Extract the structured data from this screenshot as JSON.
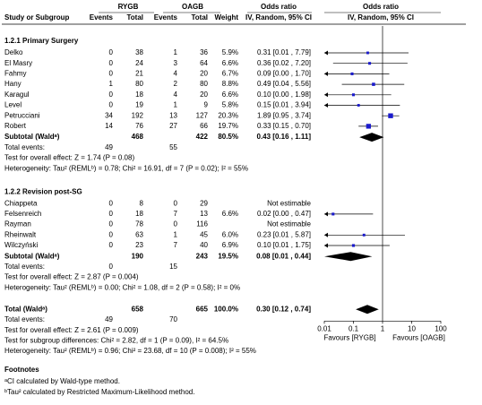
{
  "header": {
    "group1": "RYGB",
    "group2": "OAGB",
    "effect": "Odds ratio",
    "effect2": "Odds ratio",
    "col_study": "Study or Subgroup",
    "col_events1": "Events",
    "col_total1": "Total",
    "col_events2": "Events",
    "col_total2": "Total",
    "col_weight": "Weight",
    "col_effect": "IV, Random, 95% CI",
    "col_effect2": "IV, Random, 95% CI"
  },
  "chart_data": {
    "type": "forest",
    "log": true,
    "xlim": [
      0.01,
      100
    ],
    "xticks": [
      0.01,
      0.1,
      1,
      10,
      100
    ],
    "favours_left": "Favours [RYGB]",
    "favours_right": "Favours [OAGB]",
    "marker_color": "#1a1acc",
    "diamond_color": "#000000",
    "subgroups": [
      {
        "title": "1.2.1 Primary Surgery",
        "studies": [
          {
            "name": "Delko",
            "events1": 0,
            "total1": 38,
            "events2": 1,
            "total2": 36,
            "weight": 5.9,
            "weight_label": "5.9%",
            "or": 0.31,
            "ci": [
              0.01,
              7.79
            ],
            "or_label": "0.31 [0.01 , 7.79]"
          },
          {
            "name": "El Masry",
            "events1": 0,
            "total1": 24,
            "events2": 3,
            "total2": 64,
            "weight": 6.6,
            "weight_label": "6.6%",
            "or": 0.36,
            "ci": [
              0.02,
              7.2
            ],
            "or_label": "0.36 [0.02 , 7.20]"
          },
          {
            "name": "Fahmy",
            "events1": 0,
            "total1": 21,
            "events2": 4,
            "total2": 20,
            "weight": 6.7,
            "weight_label": "6.7%",
            "or": 0.09,
            "ci": [
              0,
              1.7
            ],
            "or_label": "0.09 [0.00 , 1.70]"
          },
          {
            "name": "Hany",
            "events1": 1,
            "total1": 80,
            "events2": 2,
            "total2": 80,
            "weight": 8.8,
            "weight_label": "8.8%",
            "or": 0.49,
            "ci": [
              0.04,
              5.56
            ],
            "or_label": "0.49 [0.04 , 5.56]"
          },
          {
            "name": "Karagul",
            "events1": 0,
            "total1": 18,
            "events2": 4,
            "total2": 20,
            "weight": 6.6,
            "weight_label": "6.6%",
            "or": 0.1,
            "ci": [
              0,
              1.98
            ],
            "or_label": "0.10 [0.00 , 1.98]"
          },
          {
            "name": "Level",
            "events1": 0,
            "total1": 19,
            "events2": 1,
            "total2": 9,
            "weight": 5.8,
            "weight_label": "5.8%",
            "or": 0.15,
            "ci": [
              0.01,
              3.94
            ],
            "or_label": "0.15 [0.01 , 3.94]"
          },
          {
            "name": "Petrucciani",
            "events1": 34,
            "total1": 192,
            "events2": 13,
            "total2": 127,
            "weight": 20.3,
            "weight_label": "20.3%",
            "or": 1.89,
            "ci": [
              0.95,
              3.74
            ],
            "or_label": "1.89 [0.95 , 3.74]"
          },
          {
            "name": "Robert",
            "events1": 14,
            "total1": 76,
            "events2": 27,
            "total2": 66,
            "weight": 19.7,
            "weight_label": "19.7%",
            "or": 0.33,
            "ci": [
              0.15,
              0.7
            ],
            "or_label": "0.33 [0.15 , 0.70]"
          }
        ],
        "subtotal": {
          "label": "Subtotal (Waldᵃ)",
          "total1": 468,
          "total2": 422,
          "weight": 80.5,
          "weight_label": "80.5%",
          "or": 0.43,
          "ci": [
            0.16,
            1.11
          ],
          "or_label": "0.43 [0.16 , 1.11]"
        },
        "events_label": "Total events:",
        "events1": 49,
        "events2": 55,
        "test": "Test for overall effect: Z = 1.74 (P = 0.08)",
        "heterogeneity": "Heterogeneity: Tau² (REMLᵇ) = 0.78; Chi² = 16.91, df = 7 (P = 0.02); I² = 55%"
      },
      {
        "title": "1.2.2 Revision post-SG",
        "studies": [
          {
            "name": "Chiappeta",
            "events1": 0,
            "total1": 8,
            "events2": 0,
            "total2": 29,
            "or_label": "Not estimable"
          },
          {
            "name": "Felsenreich",
            "events1": 0,
            "total1": 18,
            "events2": 7,
            "total2": 13,
            "weight": 6.6,
            "weight_label": "6.6%",
            "or": 0.02,
            "ci": [
              0,
              0.47
            ],
            "or_label": "0.02 [0.00 , 0.47]"
          },
          {
            "name": "Rayman",
            "events1": 0,
            "total1": 78,
            "events2": 0,
            "total2": 116,
            "or_label": "Not estimable"
          },
          {
            "name": "Rheinwalt",
            "events1": 0,
            "total1": 63,
            "events2": 1,
            "total2": 45,
            "weight": 6.0,
            "weight_label": "6.0%",
            "or": 0.23,
            "ci": [
              0.01,
              5.87
            ],
            "or_label": "0.23 [0.01 , 5.87]"
          },
          {
            "name": "Wilczyński",
            "events1": 0,
            "total1": 23,
            "events2": 7,
            "total2": 40,
            "weight": 6.9,
            "weight_label": "6.9%",
            "or": 0.1,
            "ci": [
              0.01,
              1.75
            ],
            "or_label": "0.10 [0.01 , 1.75]"
          }
        ],
        "subtotal": {
          "label": "Subtotal (Waldᵃ)",
          "total1": 190,
          "total2": 243,
          "weight": 19.5,
          "weight_label": "19.5%",
          "or": 0.08,
          "ci": [
            0.01,
            0.44
          ],
          "or_label": "0.08 [0.01 , 0.44]"
        },
        "events_label": "Total events:",
        "events1": 0,
        "events2": 15,
        "test": "Test for overall effect: Z = 2.87 (P = 0.004)",
        "heterogeneity": "Heterogeneity: Tau² (REMLᵇ) = 0.00; Chi² = 1.08, df = 2 (P = 0.58); I² = 0%"
      }
    ],
    "overall": {
      "label": "Total (Waldᵃ)",
      "total1": 658,
      "total2": 665,
      "weight": 100.0,
      "weight_label": "100.0%",
      "or": 0.3,
      "ci": [
        0.12,
        0.74
      ],
      "or_label": "0.30 [0.12 , 0.74]",
      "events_label": "Total events:",
      "events1": 49,
      "events2": 70,
      "test": "Test for overall effect: Z = 2.61 (P = 0.009)",
      "subgroup_test": "Test for subgroup differences: Chi² = 2.82, df = 1 (P = 0.09), I² = 64.5%",
      "heterogeneity": "Heterogeneity: Tau² (REMLᵇ) = 0.96; Chi² = 23.68, df = 10 (P = 0.008); I² = 55%"
    }
  },
  "footnotes": {
    "title": "Footnotes",
    "items": [
      "ᵃCI calculated by Wald-type method.",
      "ᵇTau² calculated by Restricted Maximum-Likelihood method."
    ]
  }
}
